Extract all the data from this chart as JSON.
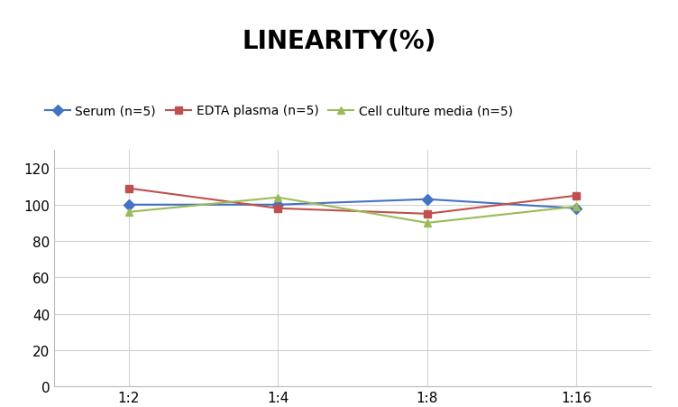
{
  "title": "LINEARITY(%)",
  "x_labels": [
    "1:2",
    "1:4",
    "1:8",
    "1:16"
  ],
  "series": [
    {
      "label": "Serum (n=5)",
      "values": [
        100,
        100,
        103,
        98
      ],
      "color": "#4472C4",
      "marker": "D",
      "marker_size": 6
    },
    {
      "label": "EDTA plasma (n=5)",
      "values": [
        109,
        98,
        95,
        105
      ],
      "color": "#C0504D",
      "marker": "s",
      "marker_size": 6
    },
    {
      "label": "Cell culture media (n=5)",
      "values": [
        96,
        104,
        90,
        99
      ],
      "color": "#9BBB59",
      "marker": "^",
      "marker_size": 6
    }
  ],
  "ylim": [
    0,
    130
  ],
  "yticks": [
    0,
    20,
    40,
    60,
    80,
    100,
    120
  ],
  "grid_color": "#D3D3D3",
  "background_color": "#FFFFFF",
  "title_fontsize": 20,
  "legend_fontsize": 10,
  "tick_fontsize": 11
}
